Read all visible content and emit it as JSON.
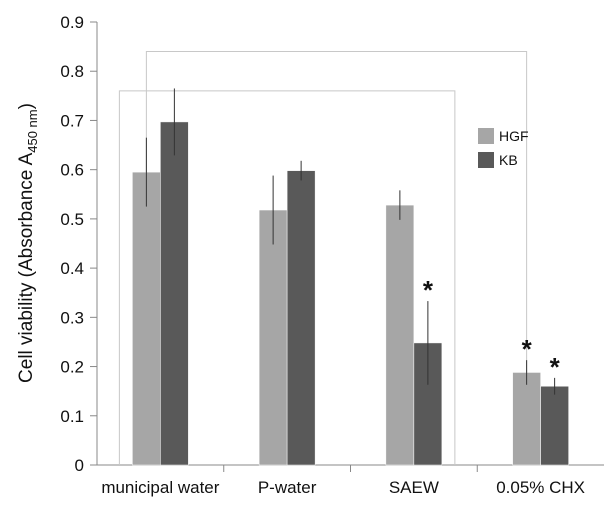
{
  "chart_data": {
    "type": "bar",
    "title": "",
    "xlabel": "",
    "ylabel_main": "Cell viability (Absorbance A",
    "ylabel_sub": "450 nm",
    "ylabel_close": ")",
    "ylim": [
      0,
      0.9
    ],
    "yticks": [
      "0",
      "0.1",
      "0.2",
      "0.3",
      "0.4",
      "0.5",
      "0.6",
      "0.7",
      "0.8",
      "0.9"
    ],
    "categories": [
      "municipal water",
      "P-water",
      "SAEW",
      "0.05% CHX"
    ],
    "series": [
      {
        "name": "HGF",
        "color": "#a6a6a6",
        "values": [
          0.595,
          0.518,
          0.528,
          0.188
        ],
        "errors": [
          0.07,
          0.07,
          0.03,
          0.025
        ]
      },
      {
        "name": "KB",
        "color": "#595959",
        "values": [
          0.697,
          0.598,
          0.248,
          0.16
        ],
        "errors": [
          0.068,
          0.02,
          0.085,
          0.017
        ]
      }
    ],
    "significance_marker": "*",
    "significant": [
      [
        false,
        false,
        false,
        true
      ],
      [
        false,
        false,
        true,
        true
      ]
    ],
    "grid": false,
    "legend_position": "top-right"
  }
}
